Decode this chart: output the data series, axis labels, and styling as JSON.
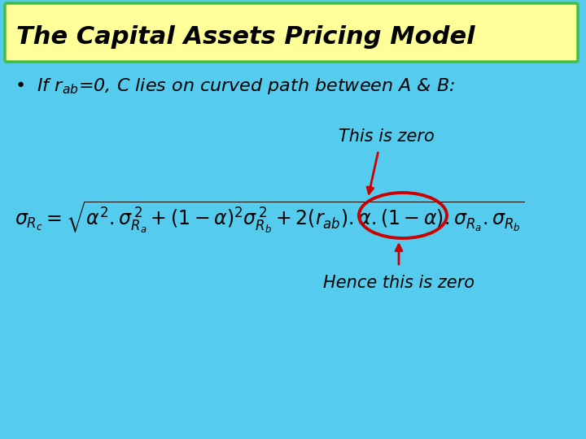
{
  "title": "The Capital Assets Pricing Model",
  "title_bg": "#FFFF99",
  "title_border": "#44BB44",
  "bg_color": "#55CCEE",
  "bullet_text": "If r",
  "bullet_sub": "ab",
  "bullet_rest": "=0, C lies on curved path between A & B:",
  "annotation_above": "This is zero",
  "annotation_below": "Hence this is zero",
  "text_color_black": "#000000",
  "text_color_red": "#CC0000",
  "annotation_fontsize": 15
}
